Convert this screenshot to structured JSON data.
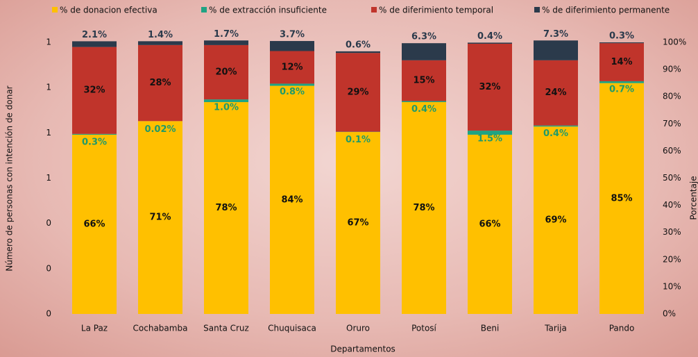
{
  "chart_data": {
    "type": "stacked_bar",
    "categories": [
      "La Paz",
      "Cochabamba",
      "Santa Cruz",
      "Chuquisaca",
      "Oruro",
      "Potosí",
      "Beni",
      "Tarija",
      "Pando"
    ],
    "series": [
      {
        "name": "% de donacion efectiva",
        "color": "#ffc000",
        "axis": "y2",
        "values": [
          66,
          71,
          78,
          84,
          67,
          78,
          66,
          69,
          85
        ],
        "value_labels": [
          "66%",
          "71%",
          "78%",
          "84%",
          "67%",
          "78%",
          "66%",
          "69%",
          "85%"
        ]
      },
      {
        "name": "% de extracción insuficiente",
        "color": "#1fa383",
        "axis": "y2",
        "values": [
          0.3,
          0.02,
          1.0,
          0.8,
          0.1,
          0.4,
          1.5,
          0.4,
          0.7
        ],
        "value_labels": [
          "0.3%",
          "0.02%",
          "1.0%",
          "0.8%",
          "0.1%",
          "0.4%",
          "1.5%",
          "0.4%",
          "0.7%"
        ]
      },
      {
        "name": "% de diferimiento temporal",
        "color": "#c0342b",
        "axis": "y2",
        "values": [
          32,
          28,
          20,
          12,
          29,
          15,
          32,
          24,
          14
        ],
        "value_labels": [
          "32%",
          "28%",
          "20%",
          "12%",
          "29%",
          "15%",
          "32%",
          "24%",
          "14%"
        ]
      },
      {
        "name": "% de diferimiento permanente",
        "color": "#2b3a4b",
        "axis": "y2",
        "values": [
          2.1,
          1.4,
          1.7,
          3.7,
          0.6,
          6.3,
          0.4,
          7.3,
          0.3
        ],
        "value_labels": [
          "2.1%",
          "1.4%",
          "1.7%",
          "3.7%",
          "0.6%",
          "6.3%",
          "0.4%",
          "7.3%",
          "0.3%"
        ]
      }
    ],
    "x_label": "Departamentos",
    "y_label": "Número de personas con intención de donar",
    "y2_label": "Porcentaje",
    "ylim": [
      0,
      1.2
    ],
    "yticks": [
      0,
      {
        "value": 0.2,
        "label": "0"
      },
      {
        "value": 0.4,
        "label": "0"
      },
      {
        "value": 0.6,
        "label": "1"
      },
      {
        "value": 0.8,
        "label": "1"
      },
      1,
      {
        "value": 1.2,
        "label": "1"
      }
    ],
    "y2lim": [
      0,
      100
    ],
    "y2ticks": [
      {
        "value": 0,
        "label": "0%"
      },
      {
        "value": 10,
        "label": "10%"
      },
      {
        "value": 20,
        "label": "20%"
      },
      {
        "value": 30,
        "label": "30%"
      },
      {
        "value": 40,
        "label": "40%"
      },
      {
        "value": 50,
        "label": "50%"
      },
      {
        "value": 60,
        "label": "60%"
      },
      {
        "value": 70,
        "label": "70%"
      },
      {
        "value": 80,
        "label": "80%"
      },
      {
        "value": 90,
        "label": "90%"
      },
      {
        "value": 100,
        "label": "100%"
      }
    ],
    "legend_position": "top"
  }
}
